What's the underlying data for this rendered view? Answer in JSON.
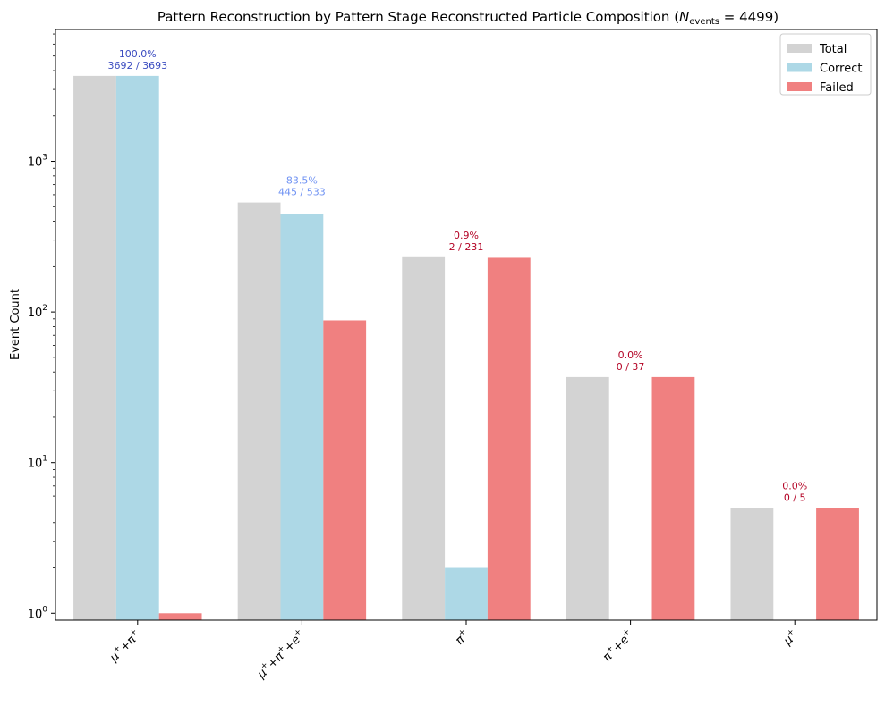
{
  "chart_data": {
    "type": "bar",
    "title": "Pattern Reconstruction by Pattern Stage Reconstructed Particle Composition (",
    "title_math_N": "N",
    "title_math_sub": "events",
    "title_math_value": " = 4499)",
    "xlabel": "",
    "ylabel": "Event Count",
    "yscale": "log",
    "ylim": [
      0.9,
      7500
    ],
    "yticks": [
      {
        "value": 1,
        "base": "10",
        "exp": "0"
      },
      {
        "value": 10,
        "base": "10",
        "exp": "1"
      },
      {
        "value": 100,
        "base": "10",
        "exp": "2"
      },
      {
        "value": 1000,
        "base": "10",
        "exp": "3"
      }
    ],
    "categories": [
      {
        "parts": [
          [
            "μ",
            "+"
          ],
          [
            "+π",
            "+"
          ]
        ]
      },
      {
        "parts": [
          [
            "μ",
            "+"
          ],
          [
            "+π",
            "+"
          ],
          [
            "+e",
            "+"
          ]
        ]
      },
      {
        "parts": [
          [
            "π",
            "+"
          ]
        ]
      },
      {
        "parts": [
          [
            "π",
            "+"
          ],
          [
            "+e",
            "+"
          ]
        ]
      },
      {
        "parts": [
          [
            "μ",
            "+"
          ]
        ]
      }
    ],
    "series": [
      {
        "name": "Total",
        "color": "#d3d3d3",
        "values": [
          3693,
          533,
          231,
          37,
          5
        ]
      },
      {
        "name": "Correct",
        "color": "#add8e6",
        "values": [
          3692,
          445,
          2,
          0,
          0
        ]
      },
      {
        "name": "Failed",
        "color": "#f08080",
        "values": [
          1,
          88,
          229,
          37,
          5
        ]
      }
    ],
    "annotations": [
      {
        "pct": "100.0%",
        "ratio": "3692 / 3693",
        "color": "#3b4cc0"
      },
      {
        "pct": "83.5%",
        "ratio": "445 / 533",
        "color": "#6f92f3"
      },
      {
        "pct": "0.9%",
        "ratio": "2 / 231",
        "color": "#b40426"
      },
      {
        "pct": "0.0%",
        "ratio": "0 / 37",
        "color": "#b40426"
      },
      {
        "pct": "0.0%",
        "ratio": "0 / 5",
        "color": "#b40426"
      }
    ],
    "legend_position": "top-right",
    "grid": false
  }
}
